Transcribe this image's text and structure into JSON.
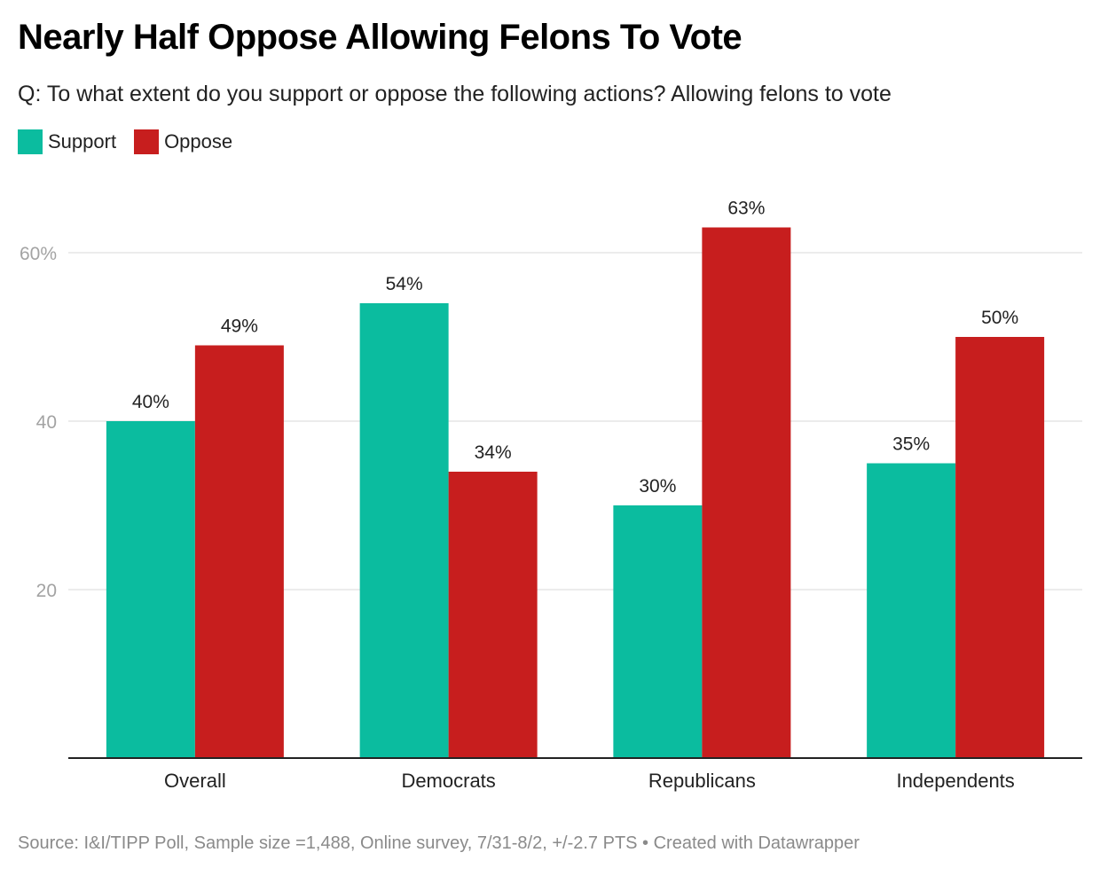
{
  "colors": {
    "support": "#0bbc9f",
    "oppose": "#c71e1e",
    "grid": "#e6e6e6",
    "tick": "#a3a3a3",
    "axis": "#222222"
  },
  "chart_data": {
    "type": "bar",
    "title": "Nearly Half Oppose Allowing Felons To Vote",
    "subtitle": "Q: To what extent do you support or oppose the following actions? Allowing felons to vote",
    "xlabel": "",
    "ylabel": "",
    "categories": [
      "Overall",
      "Democrats",
      "Republicans",
      "Independents"
    ],
    "series": [
      {
        "name": "Support",
        "values": [
          40,
          54,
          30,
          35
        ],
        "labels": [
          "40%",
          "54%",
          "30%",
          "35%"
        ]
      },
      {
        "name": "Oppose",
        "values": [
          49,
          34,
          63,
          50
        ],
        "labels": [
          "49%",
          "34%",
          "63%",
          "50%"
        ]
      }
    ],
    "ylim": [
      0,
      60
    ],
    "yticks": [
      {
        "value": 20,
        "label": "20"
      },
      {
        "value": 40,
        "label": "40"
      },
      {
        "value": 60,
        "label": "60%"
      }
    ],
    "grid": true,
    "legend": "top-left"
  },
  "legend": {
    "items": [
      {
        "label": "Support"
      },
      {
        "label": "Oppose"
      }
    ]
  },
  "footer": "Source: I&I/TIPP Poll, Sample size =1,488, Online survey, 7/31-8/2, +/-2.7 PTS • Created with Datawrapper"
}
